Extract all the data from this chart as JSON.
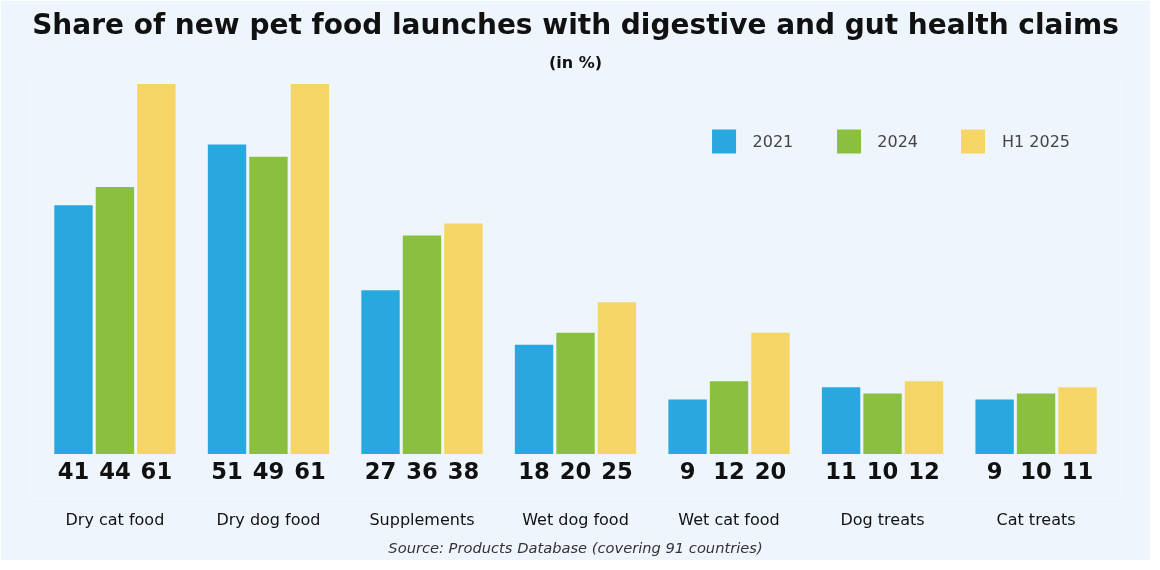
{
  "chart_data": {
    "type": "bar",
    "title": "Share of new pet food launches with digestive and gut health claims",
    "subtitle": "(in %)",
    "categories": [
      "Dry cat food",
      "Dry dog food",
      "Supplements",
      "Wet dog food",
      "Wet cat food",
      "Dog treats",
      "Cat treats"
    ],
    "series": [
      {
        "name": "2021",
        "color": "#29a8e0",
        "values": [
          41,
          51,
          27,
          18,
          9,
          11,
          9
        ]
      },
      {
        "name": "2024",
        "color": "#8bbf3f",
        "values": [
          44,
          49,
          36,
          20,
          12,
          10,
          10
        ]
      },
      {
        "name": "H1 2025",
        "color": "#f5d565",
        "values": [
          61,
          61,
          38,
          25,
          20,
          12,
          11
        ]
      }
    ],
    "data_labels": true,
    "legend": "top right",
    "grid": false,
    "annotations": [
      "Source: Products Database (covering 91 countries)"
    ]
  }
}
